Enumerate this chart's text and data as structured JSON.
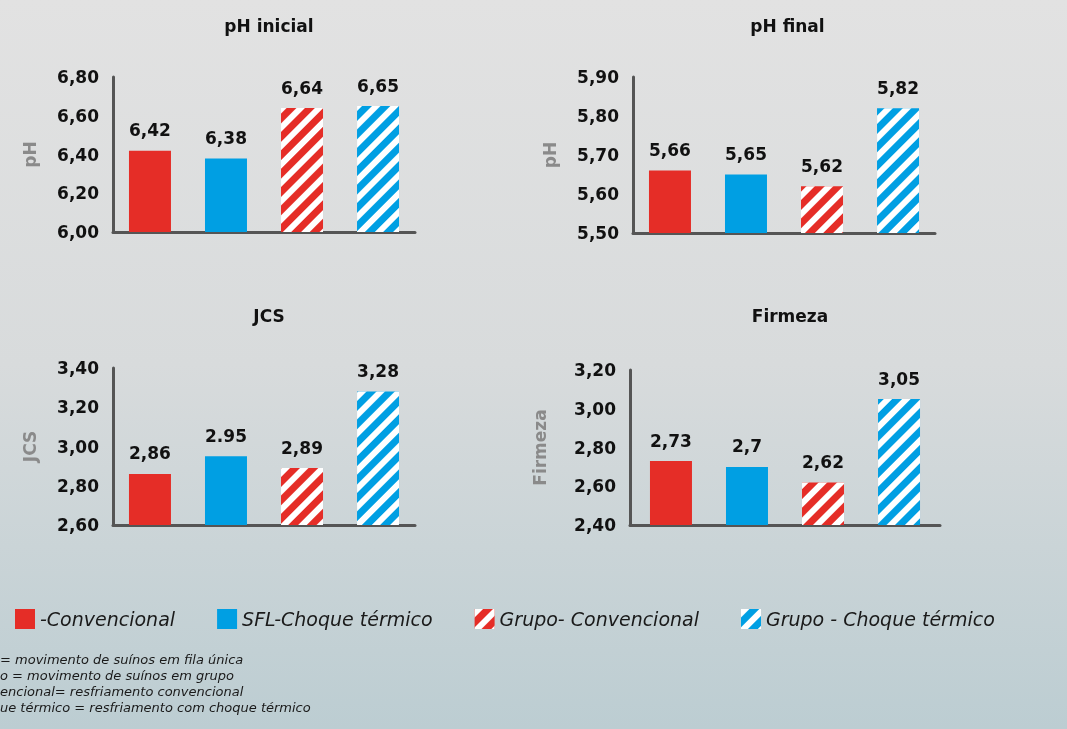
{
  "chart_data": [
    {
      "type": "bar",
      "title": "pH inicial",
      "ylabel": "pH",
      "categories": [
        null
      ],
      "ylim": [
        6.0,
        6.8
      ],
      "yticks": [
        {
          "value": 6.0,
          "label": "6,00"
        },
        {
          "value": 6.2,
          "label": "6,20"
        },
        {
          "value": 6.4,
          "label": "6,40"
        },
        {
          "value": 6.6,
          "label": "6,60"
        },
        {
          "value": 6.8,
          "label": "6,80"
        }
      ],
      "grid": false,
      "legend": false,
      "series": [
        {
          "color": "#e52d27",
          "values": [
            6.42
          ],
          "value_labels": [
            "6,42"
          ]
        },
        {
          "color": "#009fe3",
          "values": [
            6.38
          ],
          "value_labels": [
            "6,38"
          ]
        },
        {
          "color": "#e52d27",
          "values": [
            6.64
          ],
          "value_labels": [
            "6,64"
          ]
        },
        {
          "color": "#009fe3",
          "values": [
            6.65
          ],
          "value_labels": [
            "6,65"
          ]
        }
      ]
    },
    {
      "type": "bar",
      "title": "pH final",
      "ylabel": "pH",
      "categories": [
        null
      ],
      "ylim": [
        5.5,
        5.9
      ],
      "yticks": [
        {
          "value": 5.5,
          "label": "5,50"
        },
        {
          "value": 5.6,
          "label": "5,60"
        },
        {
          "value": 5.7,
          "label": "5,70"
        },
        {
          "value": 5.8,
          "label": "5,80"
        },
        {
          "value": 5.9,
          "label": "5,90"
        }
      ],
      "grid": false,
      "legend": false,
      "series": [
        {
          "color": "#e52d27",
          "values": [
            5.66
          ],
          "value_labels": [
            "5,66"
          ]
        },
        {
          "color": "#009fe3",
          "values": [
            5.65
          ],
          "value_labels": [
            "5,65"
          ]
        },
        {
          "color": "#e52d27",
          "values": [
            5.62
          ],
          "value_labels": [
            "5,62"
          ]
        },
        {
          "color": "#009fe3",
          "values": [
            5.82
          ],
          "value_labels": [
            "5,82"
          ]
        }
      ]
    },
    {
      "type": "bar",
      "title": "JCS",
      "ylabel": "JCS",
      "categories": [
        null
      ],
      "ylim": [
        2.6,
        3.4
      ],
      "yticks": [
        {
          "value": 2.6,
          "label": "2,60"
        },
        {
          "value": 2.8,
          "label": "2,80"
        },
        {
          "value": 3.0,
          "label": "3,00"
        },
        {
          "value": 3.2,
          "label": "3,20"
        },
        {
          "value": 3.4,
          "label": "3,40"
        }
      ],
      "grid": false,
      "legend": false,
      "series": [
        {
          "color": "#e52d27",
          "values": [
            2.86
          ],
          "value_labels": [
            "2,86"
          ]
        },
        {
          "color": "#009fe3",
          "values": [
            2.95
          ],
          "value_labels": [
            "2.95"
          ]
        },
        {
          "color": "#e52d27",
          "values": [
            2.89
          ],
          "value_labels": [
            "2,89"
          ]
        },
        {
          "color": "#009fe3",
          "values": [
            3.28
          ],
          "value_labels": [
            "3,28"
          ]
        }
      ]
    },
    {
      "type": "bar",
      "title": "Firmeza",
      "ylabel": "Firmeza",
      "categories": [
        null
      ],
      "ylim": [
        2.4,
        3.2
      ],
      "yticks": [
        {
          "value": 2.4,
          "label": "2,40"
        },
        {
          "value": 2.6,
          "label": "2,60"
        },
        {
          "value": 2.8,
          "label": "2,80"
        },
        {
          "value": 3.0,
          "label": "3,00"
        },
        {
          "value": 3.2,
          "label": "3,20"
        }
      ],
      "grid": false,
      "legend": "bottom",
      "annotations": [
        "= movimento de suínos em fila única",
        "o = movimento de suínos em grupo",
        "encional= resfriamento convencional",
        "ue térmico = resfriamento com choque térmico"
      ],
      "series": [
        {
          "name": "-Convencional",
          "color": "#e52d27",
          "values": [
            2.73
          ],
          "value_labels": [
            "2,73"
          ]
        },
        {
          "name": "SFL-Choque térmico",
          "color": "#009fe3",
          "values": [
            2.7
          ],
          "value_labels": [
            "2,7"
          ]
        },
        {
          "name": "Grupo- Convencional",
          "color": "#e52d27",
          "values": [
            2.62
          ],
          "value_labels": [
            "2,62"
          ]
        },
        {
          "name": "Grupo - Choque térmico",
          "color": "#009fe3",
          "values": [
            3.05
          ],
          "value_labels": [
            "3,05"
          ]
        }
      ]
    }
  ]
}
